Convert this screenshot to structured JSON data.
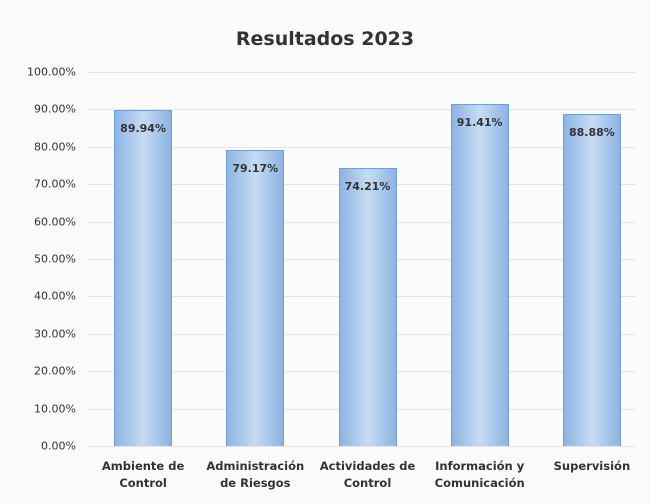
{
  "chart_data": {
    "type": "bar",
    "title": "Resultados 2023",
    "categories": [
      "Ambiente de Control",
      "Administración de Riesgos",
      "Actividades de Control",
      "Información y Comunicación",
      "Supervisión"
    ],
    "values": [
      89.94,
      79.17,
      74.21,
      91.41,
      88.88
    ],
    "value_labels": [
      "89.94%",
      "79.17%",
      "74.21%",
      "91.41%",
      "88.88%"
    ],
    "color": "#8db4e2",
    "ylim": [
      0,
      100
    ],
    "yticks": [
      {
        "value": 0,
        "label": "0.00%"
      },
      {
        "value": 10,
        "label": "10.00%"
      },
      {
        "value": 20,
        "label": "20.00%"
      },
      {
        "value": 30,
        "label": "30.00%"
      },
      {
        "value": 40,
        "label": "40.00%"
      },
      {
        "value": 50,
        "label": "50.00%"
      },
      {
        "value": 60,
        "label": "60.00%"
      },
      {
        "value": 70,
        "label": "70.00%"
      },
      {
        "value": 80,
        "label": "80.00%"
      },
      {
        "value": 90,
        "label": "90.00%"
      },
      {
        "value": 100,
        "label": "100.00%"
      }
    ],
    "grid": true
  }
}
